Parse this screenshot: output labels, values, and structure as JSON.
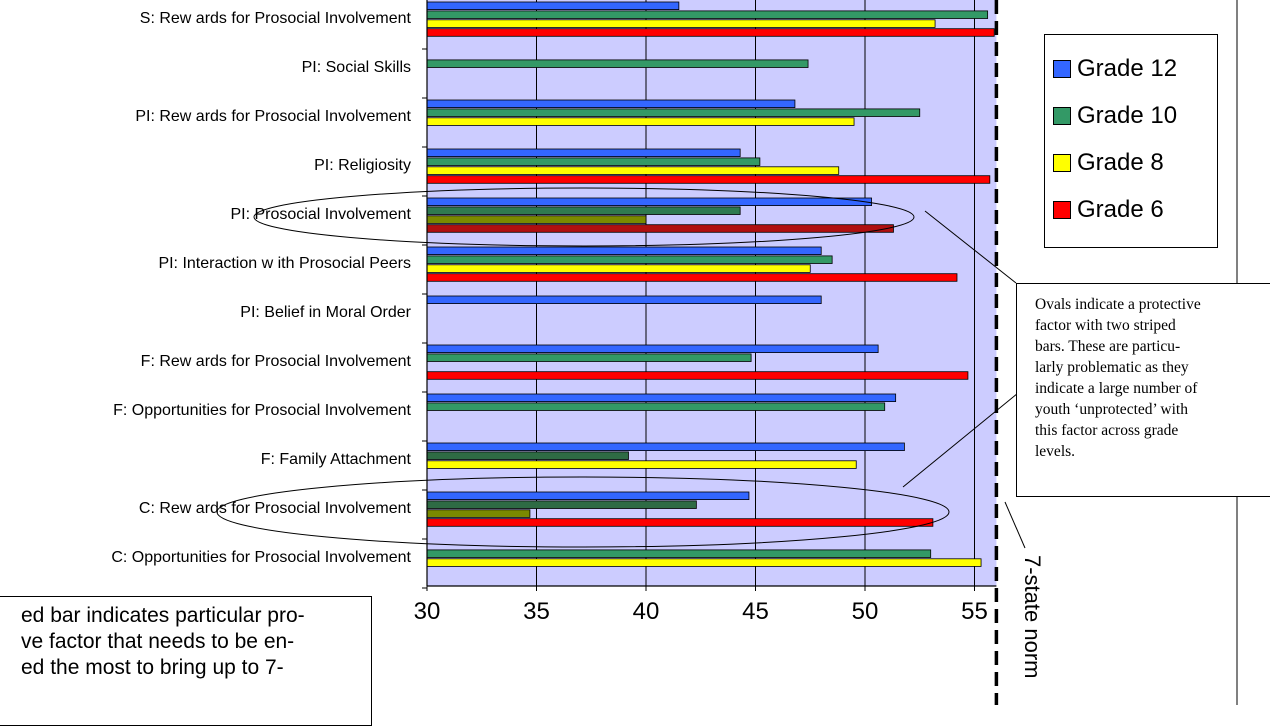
{
  "chart_data": {
    "type": "bar",
    "orientation": "horizontal",
    "categories": [
      "S: Rew ards for Prosocial Involvement",
      "PI: Social Skills",
      "PI: Rew ards for Prosocial Involvement",
      "PI: Religiosity",
      "PI: Prosocial Involvement",
      "PI: Interaction w ith Prosocial Peers",
      "PI: Belief in Moral Order",
      "F: Rew ards for Prosocial Involvement",
      "F: Opportunities for Prosocial Involvement",
      "F: Family Attachment",
      "C: Rew ards for Prosocial Involvement",
      "C: Opportunities for Prosocial Involvement"
    ],
    "series": [
      {
        "name": "Grade 12",
        "color": "#3366ff",
        "values": [
          41.5,
          null,
          46.8,
          44.3,
          50.3,
          48.0,
          48.0,
          50.6,
          51.4,
          51.8,
          44.7,
          null
        ]
      },
      {
        "name": "Grade 10",
        "color": "#339966",
        "values": [
          55.6,
          47.4,
          52.5,
          45.2,
          44.3,
          48.5,
          null,
          44.8,
          50.9,
          39.2,
          42.3,
          53.0
        ]
      },
      {
        "name": "Grade 8",
        "color": "#ffff00",
        "values": [
          53.2,
          null,
          49.5,
          48.8,
          40.0,
          47.5,
          null,
          null,
          null,
          49.6,
          34.7,
          55.3
        ]
      },
      {
        "name": "Grade 6",
        "color": "#ff0000",
        "values": [
          55.9,
          null,
          null,
          55.7,
          51.3,
          54.2,
          null,
          54.7,
          null,
          null,
          53.1,
          null
        ]
      }
    ],
    "striped": [
      {
        "category": "PI: Prosocial Involvement",
        "series": "Grade 10",
        "color": "#2f7a50"
      },
      {
        "category": "PI: Prosocial Involvement",
        "series": "Grade 8",
        "color": "#7a8a00"
      },
      {
        "category": "PI: Prosocial Involvement",
        "series": "Grade 6",
        "color": "#b01010"
      },
      {
        "category": "F: Family Attachment",
        "series": "Grade 10",
        "color": "#2e6b44"
      },
      {
        "category": "C: Rew ards for Prosocial Involvement",
        "series": "Grade 10",
        "color": "#2e6b44"
      },
      {
        "category": "C: Rew ards for Prosocial Involvement",
        "series": "Grade 8",
        "color": "#7a8a00"
      }
    ],
    "xlim": [
      30,
      56
    ],
    "xticks": [
      30,
      35,
      40,
      45,
      50,
      55
    ],
    "reference_line": {
      "value": 56,
      "label": "7-state norm"
    },
    "grid": true,
    "legend": {
      "position": "right",
      "entries": [
        "Grade 12",
        "Grade 10",
        "Grade 8",
        "Grade 6"
      ]
    },
    "plot_background": "#ccccff"
  },
  "legend_items": [
    {
      "label": "Grade 12",
      "color": "#3366ff"
    },
    {
      "label": "Grade 10",
      "color": "#339966"
    },
    {
      "label": "Grade 8",
      "color": "#ffff00"
    },
    {
      "label": "Grade 6",
      "color": "#ff0000"
    }
  ],
  "annotations": {
    "callout_lines": [
      "Ovals indicate a protective",
      "factor with two striped",
      "bars.  These are particu-",
      "larly problematic as they",
      "indicate a large number of",
      "youth ‘unprotected’ with",
      "this factor across grade",
      "levels."
    ],
    "bottom_note_lines": [
      "ed bar indicates particular pro-",
      "ve factor that needs to be en-",
      "ed the most to bring up to 7-"
    ],
    "norm_label": "7-state norm"
  }
}
